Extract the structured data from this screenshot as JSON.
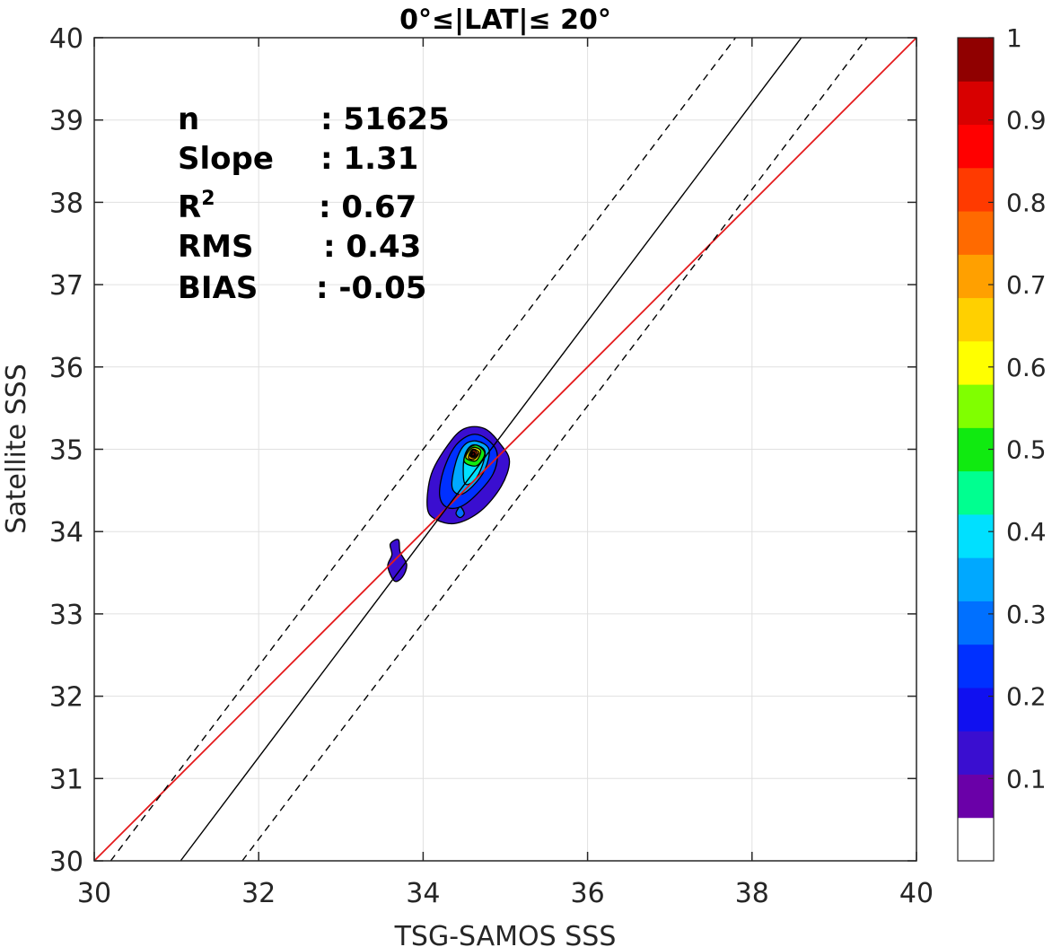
{
  "chart_data": {
    "type": "contour",
    "title": "0°≤|LAT|≤ 20°",
    "xlabel": "TSG-SAMOS SSS",
    "ylabel": "Satellite SSS",
    "xlim": [
      30,
      40
    ],
    "ylim": [
      30,
      40
    ],
    "xticks": [
      "30",
      "32",
      "34",
      "36",
      "38",
      "40"
    ],
    "yticks": [
      "30",
      "31",
      "32",
      "33",
      "34",
      "35",
      "36",
      "37",
      "38",
      "39",
      "40"
    ],
    "grid": true,
    "stats": [
      {
        "label": "n",
        "value": ": 51625"
      },
      {
        "label": "Slope",
        "value": ": 1.31"
      },
      {
        "label": "R",
        "sup": "2",
        "value": ": 0.67"
      },
      {
        "label": "RMS",
        "value": ": 0.43"
      },
      {
        "label": "BIAS",
        "value": ": -0.05"
      }
    ],
    "lines": [
      {
        "kind": "one-to-one",
        "color": "#e41a1c",
        "x": [
          30,
          40
        ],
        "y": [
          30,
          40
        ]
      },
      {
        "kind": "regression",
        "color": "#000000",
        "x": [
          31.05,
          38.6
        ],
        "y": [
          30,
          40
        ]
      },
      {
        "kind": "upper-bound",
        "color": "#000000",
        "dashed": true,
        "x": [
          30.2,
          37.8
        ],
        "y": [
          30,
          40
        ]
      },
      {
        "kind": "lower-bound",
        "color": "#000000",
        "dashed": true,
        "x": [
          31.8,
          39.4
        ],
        "y": [
          30,
          40
        ]
      }
    ],
    "density_peak": {
      "x": 34.6,
      "y": 34.95
    },
    "contours": [
      {
        "level": 0.05,
        "polygons": [
          [
            [
              34.05,
              34.3
            ],
            [
              34.1,
              34.7
            ],
            [
              34.3,
              35.05
            ],
            [
              34.5,
              35.25
            ],
            [
              34.75,
              35.25
            ],
            [
              34.95,
              35.05
            ],
            [
              35.05,
              34.85
            ],
            [
              34.95,
              34.55
            ],
            [
              34.7,
              34.25
            ],
            [
              34.4,
              34.1
            ],
            [
              34.15,
              34.15
            ]
          ],
          [
            [
              33.6,
              33.85
            ],
            [
              33.7,
              33.9
            ],
            [
              33.72,
              33.75
            ],
            [
              33.8,
              33.6
            ],
            [
              33.75,
              33.45
            ],
            [
              33.65,
              33.4
            ],
            [
              33.57,
              33.58
            ],
            [
              33.62,
              33.72
            ]
          ]
        ]
      },
      {
        "level": 0.15,
        "polygons": [
          [
            [
              34.2,
              34.45
            ],
            [
              34.25,
              34.75
            ],
            [
              34.4,
              35.05
            ],
            [
              34.6,
              35.18
            ],
            [
              34.78,
              35.12
            ],
            [
              34.9,
              34.95
            ],
            [
              34.85,
              34.7
            ],
            [
              34.65,
              34.45
            ],
            [
              34.45,
              34.3
            ],
            [
              34.28,
              34.3
            ]
          ]
        ]
      },
      {
        "level": 0.25,
        "polygons": [
          [
            [
              34.35,
              34.55
            ],
            [
              34.4,
              34.85
            ],
            [
              34.5,
              35.05
            ],
            [
              34.65,
              35.1
            ],
            [
              34.8,
              35.0
            ],
            [
              34.75,
              34.75
            ],
            [
              34.6,
              34.55
            ],
            [
              34.45,
              34.45
            ]
          ]
        ]
      },
      {
        "level": 0.35,
        "polygons": [
          [
            [
              34.5,
              34.6
            ],
            [
              34.5,
              34.9
            ],
            [
              34.6,
              35.05
            ],
            [
              34.75,
              34.98
            ],
            [
              34.7,
              34.75
            ],
            [
              34.6,
              34.6
            ]
          ]
        ]
      },
      {
        "level": 0.45,
        "polygons": [
          [
            [
              34.5,
              34.85
            ],
            [
              34.55,
              35.0
            ],
            [
              34.65,
              35.05
            ],
            [
              34.75,
              34.95
            ],
            [
              34.65,
              34.8
            ]
          ]
        ]
      },
      {
        "level": 0.55,
        "polygons": [
          [
            [
              34.52,
              34.9
            ],
            [
              34.6,
              35.02
            ],
            [
              34.7,
              34.98
            ],
            [
              34.64,
              34.86
            ]
          ]
        ]
      },
      {
        "level": 0.65,
        "polygons": [
          [
            [
              34.55,
              34.9
            ],
            [
              34.6,
              35.0
            ],
            [
              34.68,
              34.96
            ],
            [
              34.62,
              34.88
            ]
          ]
        ]
      },
      {
        "level": 0.75,
        "polygons": [
          [
            [
              34.57,
              34.92
            ],
            [
              34.61,
              34.99
            ],
            [
              34.66,
              34.95
            ],
            [
              34.62,
              34.9
            ]
          ]
        ]
      },
      {
        "level": 0.85,
        "polygons": [
          [
            [
              34.58,
              34.93
            ],
            [
              34.61,
              34.97
            ],
            [
              34.64,
              34.94
            ],
            [
              34.61,
              34.91
            ]
          ]
        ]
      },
      {
        "level": 0.95,
        "polygons": [
          [
            [
              34.59,
              34.935
            ],
            [
              34.61,
              34.955
            ],
            [
              34.63,
              34.94
            ],
            [
              34.61,
              34.925
            ]
          ]
        ]
      },
      {
        "level": 0.2,
        "polygons": [
          [
            [
              34.4,
              34.22
            ],
            [
              34.45,
              34.3
            ],
            [
              34.5,
              34.22
            ],
            [
              34.45,
              34.17
            ]
          ]
        ]
      }
    ],
    "colorbar": {
      "range": [
        0,
        1
      ],
      "tick_labels": [
        "0.1",
        "0.2",
        "0.3",
        "0.4",
        "0.5",
        "0.6",
        "0.7",
        "0.8",
        "0.9",
        "1"
      ],
      "tick_values": [
        0.1,
        0.2,
        0.3,
        0.4,
        0.5,
        0.6,
        0.7,
        0.8,
        0.9,
        1.0
      ],
      "colors": [
        "#ffffff",
        "#6a00a8",
        "#3a0ed0",
        "#1010f0",
        "#0030ff",
        "#0070ff",
        "#00a8ff",
        "#00e0ff",
        "#00ff90",
        "#10ea10",
        "#80ff00",
        "#ffff00",
        "#ffd000",
        "#ffa000",
        "#ff6a00",
        "#ff3a00",
        "#ff0000",
        "#d80000",
        "#900000"
      ]
    }
  }
}
